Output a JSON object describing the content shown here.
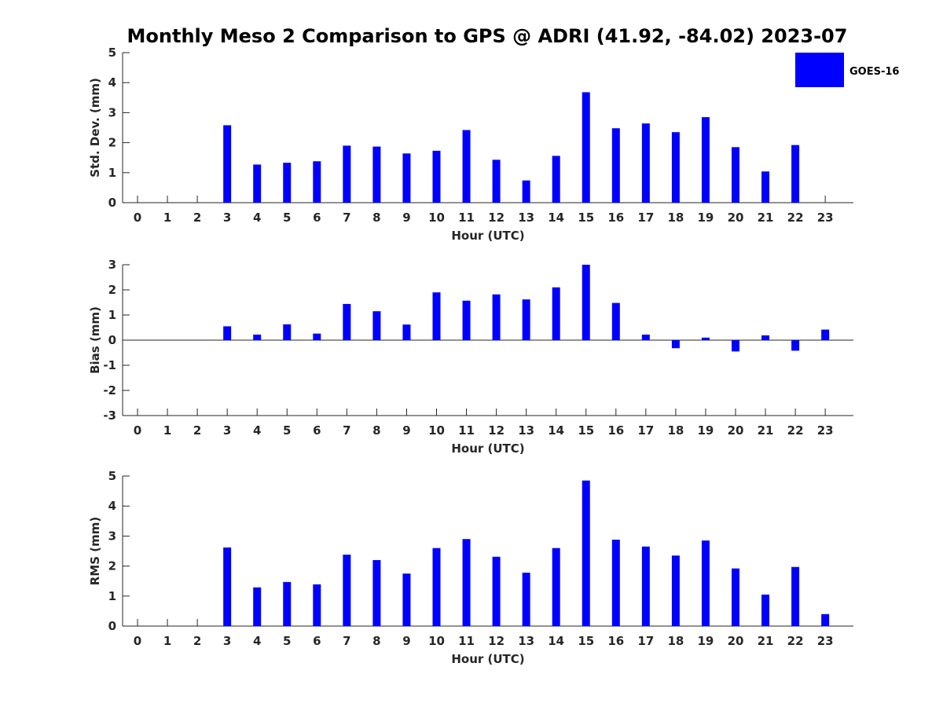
{
  "title": "Monthly Meso 2 Comparison to GPS @ ADRI (41.92, -84.02) 2023-07",
  "legend": {
    "label": "GOES-16",
    "color": "#0000ff",
    "position": "top-right"
  },
  "chart_data": [
    {
      "type": "bar",
      "xlabel": "Hour (UTC)",
      "ylabel": "Std. Dev. (mm)",
      "ylim": [
        0,
        5
      ],
      "yticks": [
        0,
        1,
        2,
        3,
        4,
        5
      ],
      "categories": [
        "0",
        "1",
        "2",
        "3",
        "4",
        "5",
        "6",
        "7",
        "8",
        "9",
        "10",
        "11",
        "12",
        "13",
        "14",
        "15",
        "16",
        "17",
        "18",
        "19",
        "20",
        "21",
        "22",
        "23"
      ],
      "series": [
        {
          "name": "GOES-16",
          "color": "#0000ff",
          "values": [
            null,
            null,
            null,
            2.58,
            1.27,
            1.33,
            1.38,
            1.9,
            1.87,
            1.64,
            1.73,
            2.42,
            1.43,
            0.74,
            1.56,
            3.68,
            2.48,
            2.64,
            2.35,
            2.85,
            1.85,
            1.04,
            1.92,
            null
          ]
        }
      ]
    },
    {
      "type": "bar",
      "xlabel": "Hour (UTC)",
      "ylabel": "Bias (mm)",
      "ylim": [
        -3,
        3
      ],
      "yticks": [
        -3,
        -2,
        -1,
        0,
        1,
        2,
        3
      ],
      "categories": [
        "0",
        "1",
        "2",
        "3",
        "4",
        "5",
        "6",
        "7",
        "8",
        "9",
        "10",
        "11",
        "12",
        "13",
        "14",
        "15",
        "16",
        "17",
        "18",
        "19",
        "20",
        "21",
        "22",
        "23"
      ],
      "series": [
        {
          "name": "GOES-16",
          "color": "#0000ff",
          "values": [
            null,
            null,
            null,
            0.55,
            0.22,
            0.63,
            0.26,
            1.44,
            1.15,
            0.62,
            1.9,
            1.57,
            1.82,
            1.62,
            2.1,
            3.0,
            1.48,
            0.22,
            -0.32,
            0.1,
            -0.45,
            0.19,
            -0.42,
            0.42
          ]
        }
      ]
    },
    {
      "type": "bar",
      "xlabel": "Hour (UTC)",
      "ylabel": "RMS (mm)",
      "ylim": [
        0,
        5
      ],
      "yticks": [
        0,
        1,
        2,
        3,
        4,
        5
      ],
      "categories": [
        "0",
        "1",
        "2",
        "3",
        "4",
        "5",
        "6",
        "7",
        "8",
        "9",
        "10",
        "11",
        "12",
        "13",
        "14",
        "15",
        "16",
        "17",
        "18",
        "19",
        "20",
        "21",
        "22",
        "23"
      ],
      "series": [
        {
          "name": "GOES-16",
          "color": "#0000ff",
          "values": [
            null,
            null,
            null,
            2.62,
            1.29,
            1.47,
            1.39,
            2.38,
            2.2,
            1.75,
            2.6,
            2.9,
            2.31,
            1.78,
            2.6,
            4.85,
            2.88,
            2.65,
            2.35,
            2.85,
            1.92,
            1.05,
            1.97,
            0.4
          ]
        }
      ]
    }
  ]
}
